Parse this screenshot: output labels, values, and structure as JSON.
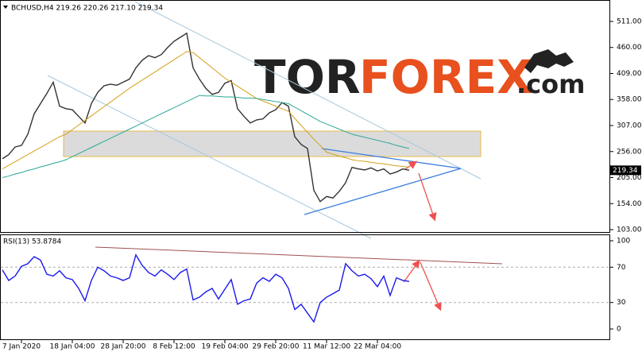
{
  "chart_data": [
    {
      "type": "line",
      "title": "BCHUSD,H4  219.26 220.26 217.10 219.34",
      "series": [
        {
          "color": "#333333",
          "values": [
            242,
            250,
            265,
            268,
            290,
            330,
            350,
            370,
            392,
            345,
            340,
            338,
            325,
            312,
            350,
            372,
            385,
            388,
            386,
            392,
            398,
            420,
            435,
            444,
            440,
            446,
            460,
            472,
            480,
            488,
            420,
            398,
            380,
            368,
            372,
            390,
            395,
            340,
            325,
            312,
            318,
            320,
            332,
            338,
            352,
            345,
            285,
            270,
            262,
            180,
            158,
            168,
            165,
            178,
            195,
            225,
            222,
            220,
            224,
            218,
            222,
            212,
            216,
            222,
            219.34
          ],
          "value_labels": [
            null,
            null,
            null,
            null,
            null,
            null,
            null,
            null,
            null,
            null,
            null,
            null,
            null,
            null,
            null,
            null,
            null,
            null,
            null,
            null,
            null,
            null,
            null,
            null,
            null,
            null,
            null,
            null,
            null,
            null,
            null,
            null,
            null,
            null,
            null,
            null,
            null,
            null,
            null,
            null,
            null,
            null,
            null,
            null,
            null,
            null,
            null,
            null,
            null,
            null,
            null,
            null,
            null,
            null,
            null,
            null,
            null,
            null,
            null,
            null,
            null,
            null,
            null,
            null,
            "219.34"
          ]
        },
        {
          "color": "#d4a017",
          "values": [
            222,
            229,
            236,
            243,
            250,
            257,
            264,
            271,
            278,
            285,
            290,
            299,
            308,
            317,
            326,
            335,
            344,
            353,
            362,
            371,
            380,
            388,
            396,
            404,
            412,
            420,
            428,
            436,
            444,
            452,
            450,
            440,
            430,
            420,
            410,
            400,
            392,
            384,
            376,
            368,
            360,
            355,
            350,
            345,
            340,
            335,
            321,
            307,
            294,
            280,
            268,
            255,
            251,
            247,
            244,
            240,
            238,
            237,
            235,
            233,
            232,
            230,
            228,
            227,
            225
          ]
        },
        {
          "color": "#2aa898",
          "values": [
            205,
            208,
            212,
            215,
            219,
            222,
            226,
            229,
            233,
            236,
            240,
            246,
            252,
            258,
            264,
            270,
            276,
            282,
            288,
            294,
            300,
            306,
            312,
            318,
            324,
            330,
            336,
            342,
            348,
            354,
            360,
            366,
            365,
            365,
            364,
            363,
            363,
            362,
            361,
            361,
            360,
            358,
            356,
            354,
            352,
            350,
            343,
            336,
            329,
            322,
            315,
            310,
            305,
            300,
            295,
            290,
            287,
            284,
            281,
            278,
            275,
            272,
            268,
            265,
            262
          ]
        }
      ],
      "ylim": [
        96.8,
        553
      ],
      "yticks": [
        {
          "value": 103,
          "label": "103.00"
        },
        {
          "value": 154,
          "label": "154.00"
        },
        {
          "value": 205,
          "label": "205.00"
        },
        {
          "value": 256,
          "label": "256.00"
        },
        {
          "value": 307,
          "label": "307.00"
        },
        {
          "value": 358,
          "label": "358.00"
        },
        {
          "value": 409,
          "label": "409.00"
        },
        {
          "value": 460,
          "label": "460.00"
        },
        {
          "value": 511,
          "label": "511.00"
        }
      ],
      "watermark": [
        "TOR",
        "FOREX",
        ".com"
      ]
    },
    {
      "type": "line",
      "title": "RSI(13) 53.8784",
      "categories": [
        null,
        null,
        null,
        "7 Jan 2020",
        null,
        null,
        null,
        null,
        null,
        null,
        null,
        "18 Jan 04:00",
        null,
        null,
        null,
        null,
        null,
        null,
        null,
        "28 Jan 20:00",
        null,
        null,
        null,
        null,
        null,
        null,
        null,
        "8 Feb 12:00",
        null,
        null,
        null,
        null,
        null,
        null,
        null,
        "19 Feb 04:00",
        null,
        null,
        null,
        null,
        null,
        null,
        null,
        "29 Feb 20:00",
        null,
        null,
        null,
        null,
        null,
        null,
        null,
        "11 Mar 12:00",
        null,
        null,
        null,
        null,
        null,
        null,
        null,
        "22 Mar 04:00",
        null,
        null,
        null,
        null,
        null
      ],
      "series": [
        {
          "color": "#1a1aee",
          "values": [
            67,
            55,
            60,
            71,
            74,
            82,
            78,
            62,
            60,
            66,
            58,
            56,
            46,
            32,
            55,
            70,
            66,
            60,
            58,
            55,
            58,
            84,
            72,
            64,
            60,
            67,
            62,
            56,
            64,
            68,
            33,
            36,
            42,
            46,
            34,
            45,
            56,
            28,
            32,
            34,
            52,
            58,
            54,
            62,
            58,
            46,
            22,
            28,
            18,
            8,
            30,
            36,
            40,
            44,
            74,
            66,
            60,
            62,
            57,
            48,
            60,
            38,
            58,
            55,
            53.8784
          ]
        }
      ],
      "ylim": [
        -12.6,
        106.3
      ],
      "yticks": [
        0,
        30,
        70,
        100
      ],
      "levels": [
        30,
        70
      ]
    }
  ]
}
